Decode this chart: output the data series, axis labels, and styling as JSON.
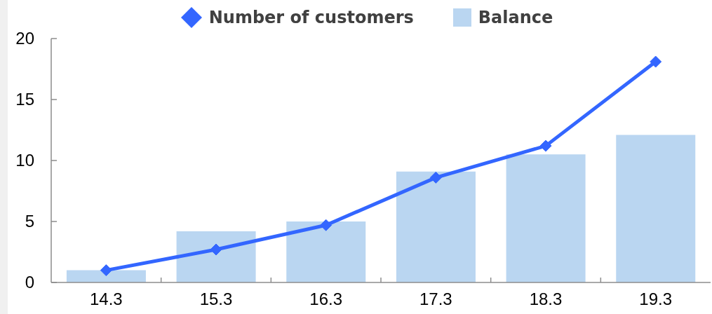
{
  "chart_data": {
    "type": "bar",
    "categories": [
      "14.3",
      "15.3",
      "16.3",
      "17.3",
      "18.3",
      "19.3"
    ],
    "series": [
      {
        "name": "Number of customers",
        "type": "line",
        "color": "#3366ff",
        "values": [
          1.0,
          2.7,
          4.7,
          8.6,
          11.2,
          18.1
        ]
      },
      {
        "name": "Balance",
        "color": "#bad6f1",
        "values": [
          1.0,
          4.2,
          5.0,
          9.1,
          10.5,
          12.1
        ]
      }
    ],
    "ylim": [
      0,
      20
    ],
    "yticks": [
      0,
      5,
      10,
      15,
      20
    ],
    "grid": false,
    "legend": "top",
    "marker": "diamond",
    "line_style": "solid"
  }
}
